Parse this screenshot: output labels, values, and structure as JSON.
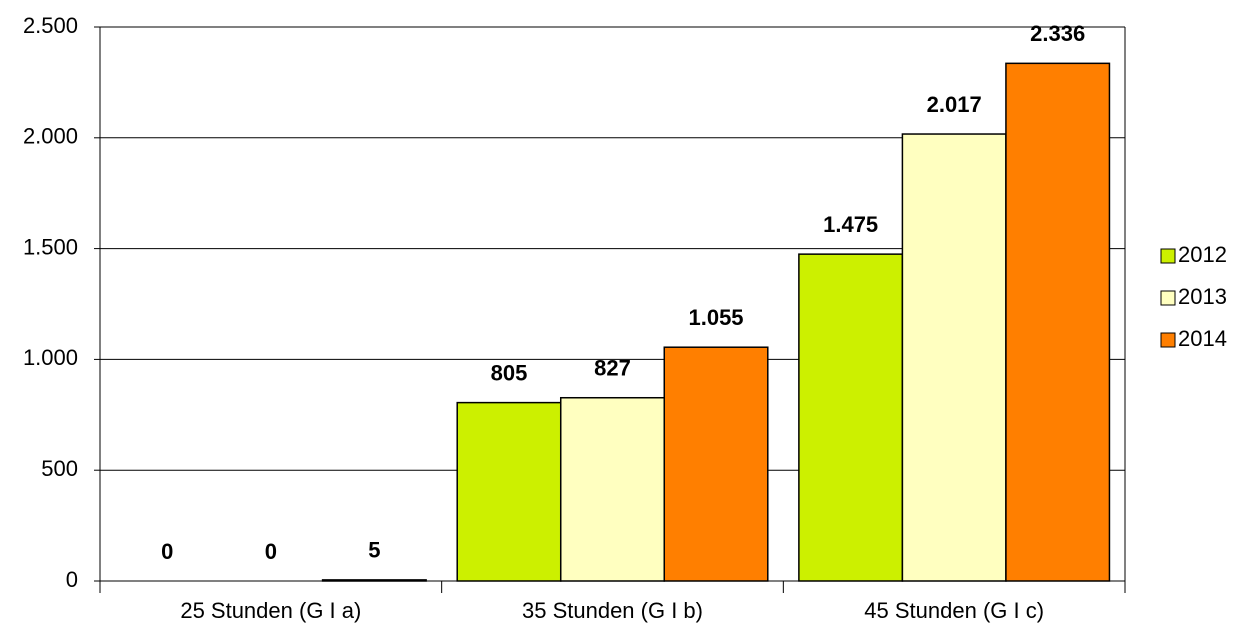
{
  "chart_data": {
    "type": "bar",
    "categories": [
      "25 Stunden (G I a)",
      "35 Stunden (G I b)",
      "45 Stunden (G I c)"
    ],
    "series": [
      {
        "name": "2012",
        "color": "#ccf000",
        "values": [
          0,
          805,
          1475
        ],
        "value_labels": [
          "0",
          "805",
          "1.475"
        ]
      },
      {
        "name": "2013",
        "color": "#ffffc0",
        "values": [
          0,
          827,
          2017
        ],
        "value_labels": [
          "0",
          "827",
          "2.017"
        ]
      },
      {
        "name": "2014",
        "color": "#ff7f00",
        "values": [
          5,
          1055,
          2336
        ],
        "value_labels": [
          "5",
          "1.055",
          "2.336"
        ]
      }
    ],
    "ylim": [
      0,
      2500
    ],
    "yticks": [
      0,
      500,
      {
        "value": 1000,
        "label": "1.000"
      },
      {
        "value": 1500,
        "label": "1.500"
      },
      {
        "value": 2000,
        "label": "2.000"
      },
      {
        "value": 2500,
        "label": "2.500"
      }
    ],
    "grid": true,
    "legend": "right"
  }
}
